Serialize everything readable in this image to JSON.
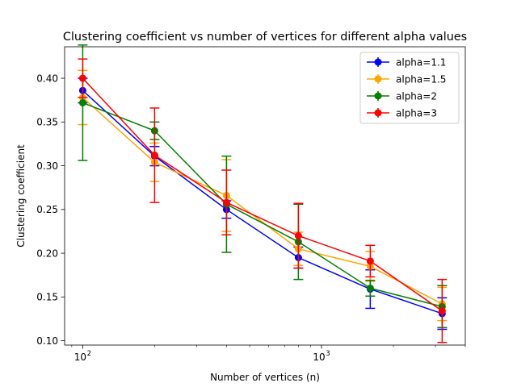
{
  "chart_data": {
    "type": "line",
    "title": "Clustering coefficient vs number of vertices for different alpha values",
    "xlabel": "Number of vertices (n)",
    "ylabel": "Clustering coefficient",
    "xscale": "log",
    "xlim": [
      84,
      4000
    ],
    "ylim": [
      0.095,
      0.436
    ],
    "xticks": [
      {
        "value": 100,
        "label": "10",
        "exp": "2"
      },
      {
        "value": 1000,
        "label": "10",
        "exp": "3"
      }
    ],
    "yticks": [
      0.1,
      0.15,
      0.2,
      0.25,
      0.3,
      0.35,
      0.4
    ],
    "ytick_labels": [
      "0.10",
      "0.15",
      "0.20",
      "0.25",
      "0.30",
      "0.35",
      "0.40"
    ],
    "x": [
      100,
      200,
      400,
      800,
      1600,
      3200
    ],
    "grid": false,
    "legend_position": "top-right",
    "error_bars": true,
    "series": [
      {
        "name": "alpha=1.1",
        "color": "#0000ff",
        "values": [
          0.386,
          0.311,
          0.25,
          0.195,
          0.159,
          0.131
        ],
        "errors": [
          0.014,
          0.011,
          0.01,
          0.012,
          0.022,
          0.018
        ]
      },
      {
        "name": "alpha=1.5",
        "color": "#ffa500",
        "values": [
          0.378,
          0.304,
          0.266,
          0.205,
          0.185,
          0.142
        ],
        "errors": [
          0.031,
          0.022,
          0.041,
          0.019,
          0.017,
          0.019
        ]
      },
      {
        "name": "alpha=2",
        "color": "#008000",
        "values": [
          0.372,
          0.34,
          0.256,
          0.213,
          0.16,
          0.139
        ],
        "errors": [
          0.066,
          0.01,
          0.055,
          0.043,
          0.009,
          0.024
        ]
      },
      {
        "name": "alpha=3",
        "color": "#ff0000",
        "values": [
          0.4,
          0.312,
          0.258,
          0.22,
          0.191,
          0.134
        ],
        "errors": [
          0.022,
          0.054,
          0.037,
          0.037,
          0.018,
          0.036
        ]
      }
    ]
  }
}
